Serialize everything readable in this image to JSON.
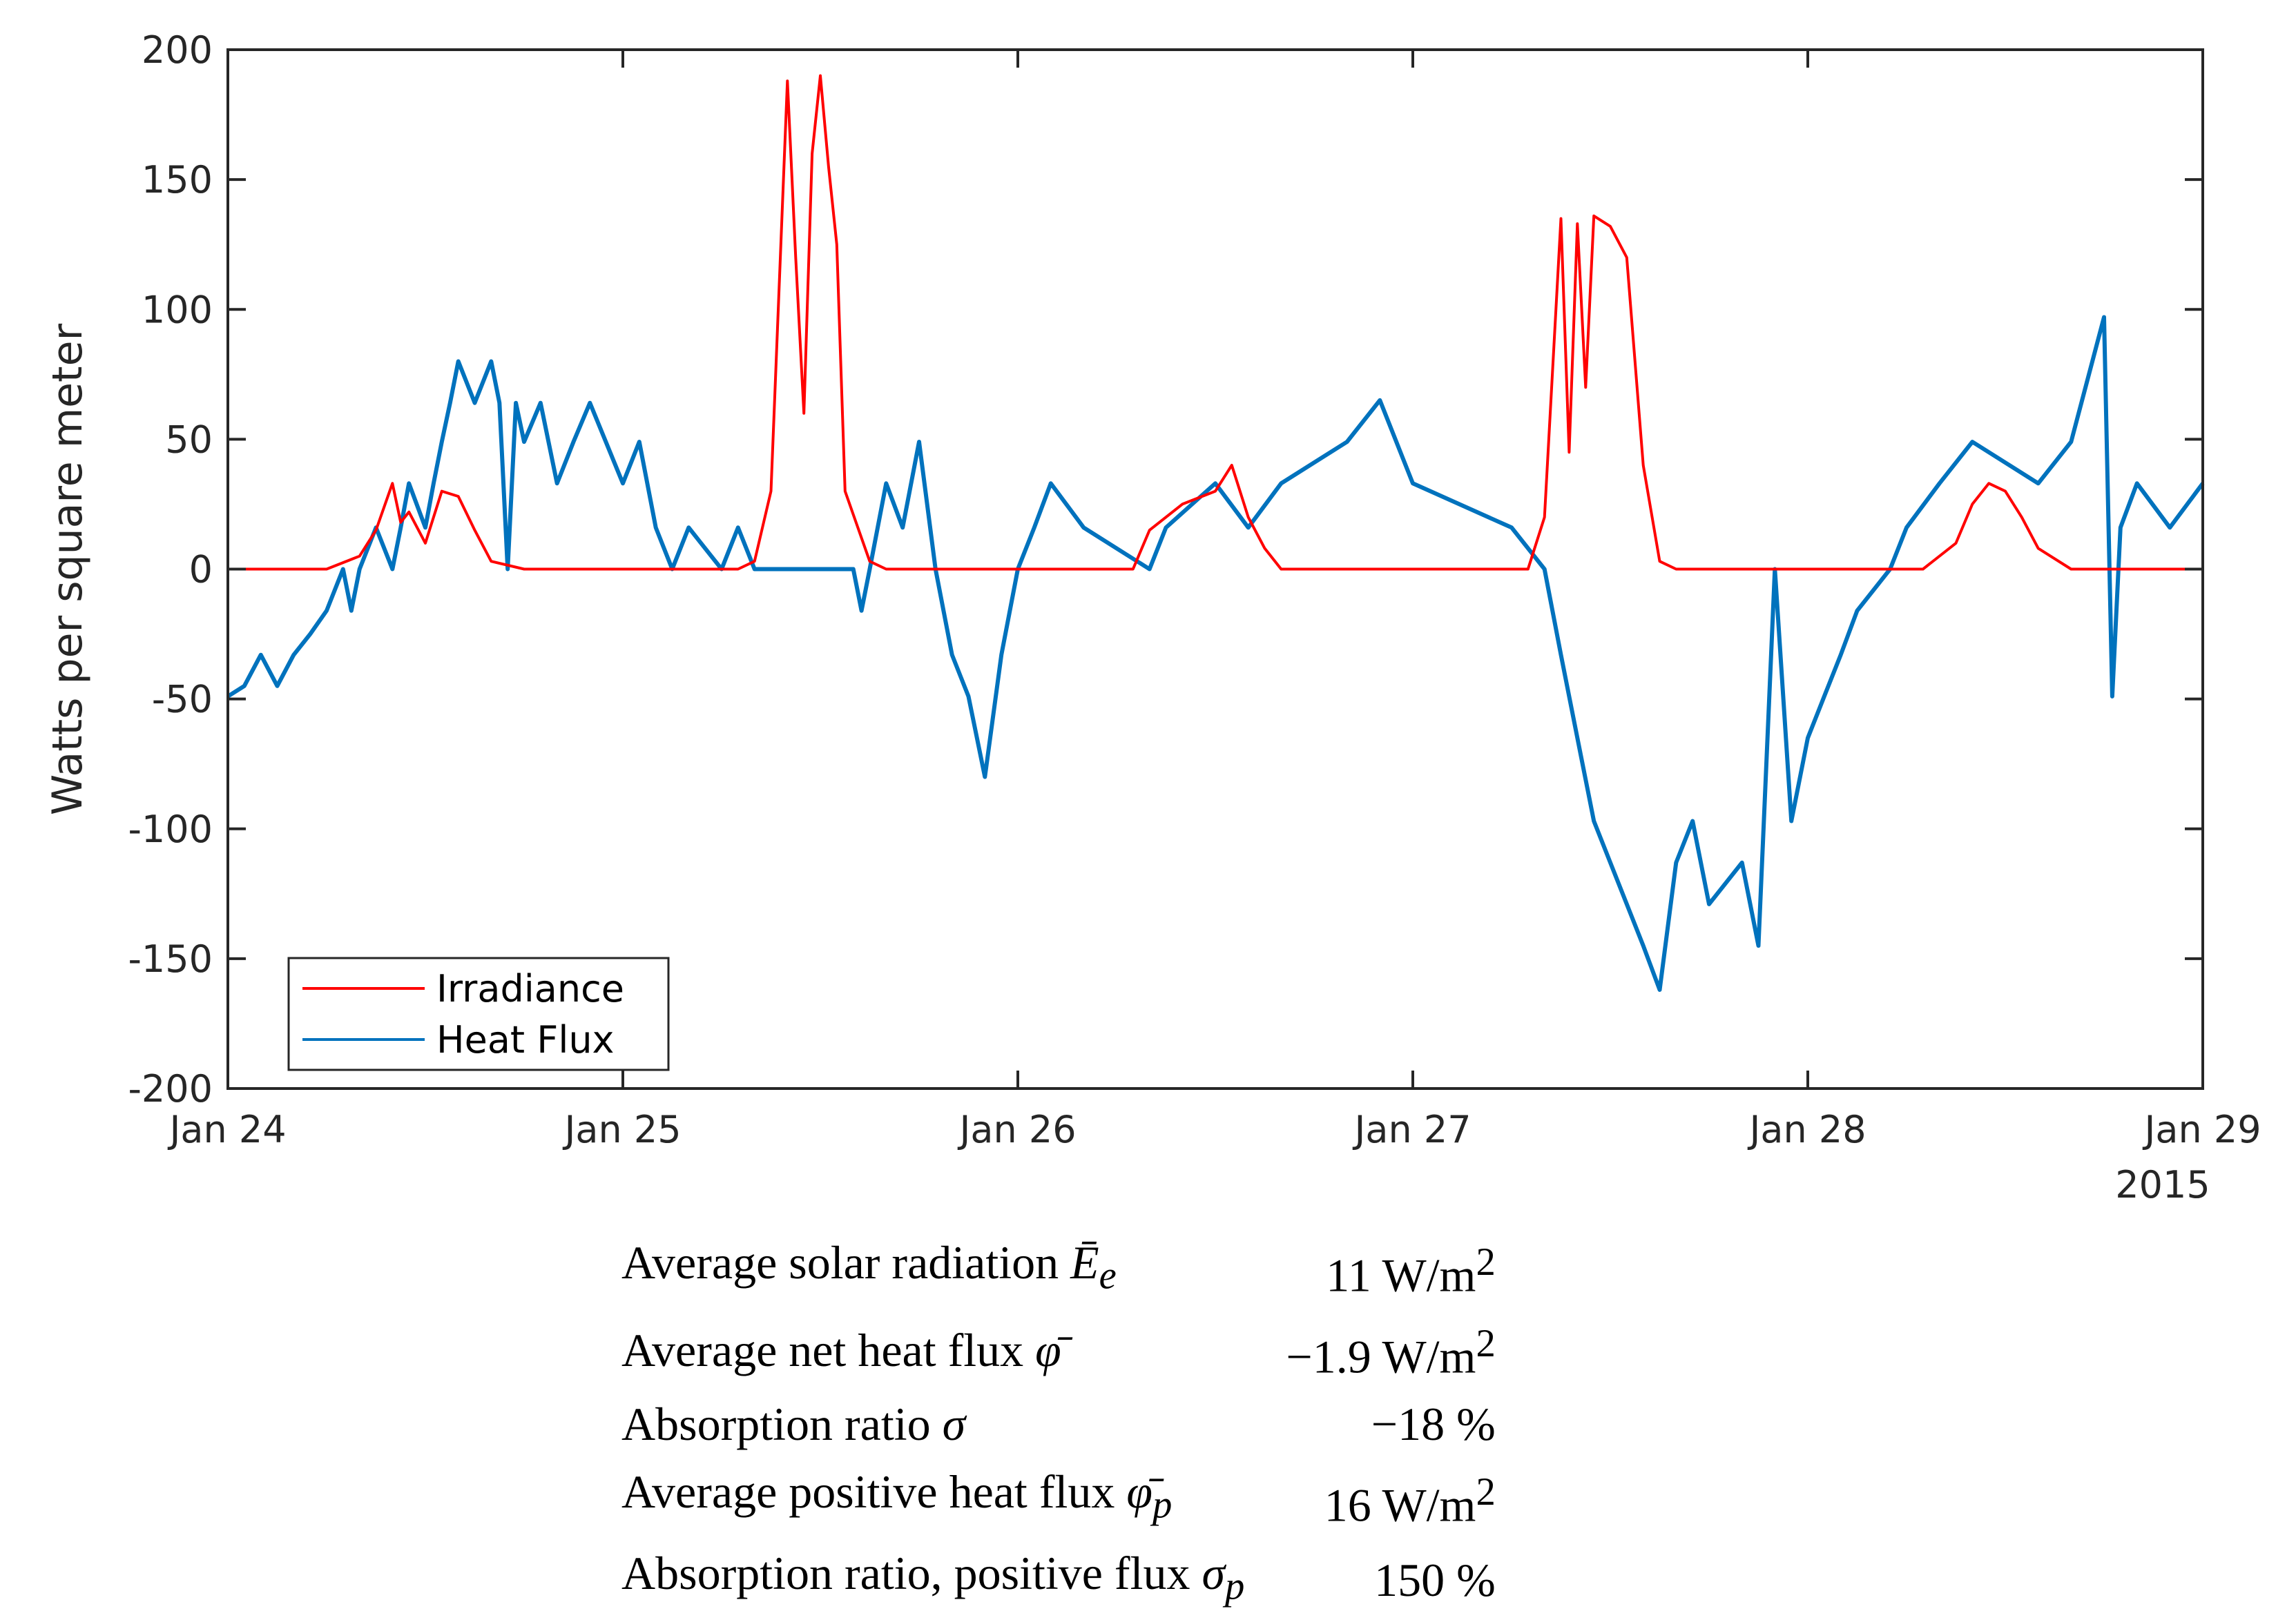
{
  "chart_data": {
    "type": "line",
    "xlabel": "",
    "ylabel": "Watts per square meter",
    "ylim": [
      -200,
      200
    ],
    "yticks": [
      "200",
      "150",
      "100",
      "50",
      "0",
      "-50",
      "-100",
      "-150",
      "-200"
    ],
    "yticks_values": [
      200,
      150,
      100,
      50,
      0,
      -50,
      -100,
      -150,
      -200
    ],
    "xlim": [
      "2015-01-24",
      "2015-01-29"
    ],
    "xticks": [
      "Jan 24",
      "Jan 25",
      "Jan 26",
      "Jan 27",
      "Jan 28",
      "Jan 29"
    ],
    "xticks_values": [
      "2015-01-24",
      "2015-01-25",
      "2015-01-26",
      "2015-01-27",
      "2015-01-28",
      "2015-01-29"
    ],
    "x_year_label": "2015",
    "legend_position": "bottom-left",
    "grid": false,
    "series": [
      {
        "name": "Irradiance",
        "color": "#ff0000",
        "points": [
          [
            "2015-01-24 00:00",
            0
          ],
          [
            "2015-01-24 06:00",
            0
          ],
          [
            "2015-01-24 08:00",
            5
          ],
          [
            "2015-01-24 09:00",
            15
          ],
          [
            "2015-01-24 10:00",
            33
          ],
          [
            "2015-01-24 10:30",
            18
          ],
          [
            "2015-01-24 11:00",
            22
          ],
          [
            "2015-01-24 12:00",
            10
          ],
          [
            "2015-01-24 13:00",
            30
          ],
          [
            "2015-01-24 14:00",
            28
          ],
          [
            "2015-01-24 15:00",
            15
          ],
          [
            "2015-01-24 16:00",
            3
          ],
          [
            "2015-01-24 18:00",
            0
          ],
          [
            "2015-01-25 07:00",
            0
          ],
          [
            "2015-01-25 08:00",
            3
          ],
          [
            "2015-01-25 09:00",
            30
          ],
          [
            "2015-01-25 10:00",
            188
          ],
          [
            "2015-01-25 10:30",
            120
          ],
          [
            "2015-01-25 11:00",
            60
          ],
          [
            "2015-01-25 11:30",
            160
          ],
          [
            "2015-01-25 12:00",
            190
          ],
          [
            "2015-01-25 12:30",
            155
          ],
          [
            "2015-01-25 13:00",
            125
          ],
          [
            "2015-01-25 13:30",
            30
          ],
          [
            "2015-01-25 15:00",
            3
          ],
          [
            "2015-01-25 16:00",
            0
          ],
          [
            "2015-01-26 07:00",
            0
          ],
          [
            "2015-01-26 08:00",
            15
          ],
          [
            "2015-01-26 10:00",
            25
          ],
          [
            "2015-01-26 12:00",
            30
          ],
          [
            "2015-01-26 13:00",
            40
          ],
          [
            "2015-01-26 14:00",
            20
          ],
          [
            "2015-01-26 15:00",
            8
          ],
          [
            "2015-01-26 16:00",
            0
          ],
          [
            "2015-01-27 07:00",
            0
          ],
          [
            "2015-01-27 08:00",
            20
          ],
          [
            "2015-01-27 09:00",
            135
          ],
          [
            "2015-01-27 09:30",
            45
          ],
          [
            "2015-01-27 10:00",
            133
          ],
          [
            "2015-01-27 10:30",
            70
          ],
          [
            "2015-01-27 11:00",
            136
          ],
          [
            "2015-01-27 12:00",
            132
          ],
          [
            "2015-01-27 13:00",
            120
          ],
          [
            "2015-01-27 14:00",
            40
          ],
          [
            "2015-01-27 15:00",
            3
          ],
          [
            "2015-01-27 16:00",
            0
          ],
          [
            "2015-01-28 07:00",
            0
          ],
          [
            "2015-01-28 09:00",
            10
          ],
          [
            "2015-01-28 10:00",
            25
          ],
          [
            "2015-01-28 11:00",
            33
          ],
          [
            "2015-01-28 12:00",
            30
          ],
          [
            "2015-01-28 13:00",
            20
          ],
          [
            "2015-01-28 14:00",
            8
          ],
          [
            "2015-01-28 16:00",
            0
          ],
          [
            "2015-01-29 00:00",
            0
          ]
        ]
      },
      {
        "name": "Heat Flux",
        "color": "#0072bd",
        "points": [
          [
            "2015-01-24 00:00",
            -49
          ],
          [
            "2015-01-24 01:00",
            -45
          ],
          [
            "2015-01-24 02:00",
            -33
          ],
          [
            "2015-01-24 03:00",
            -45
          ],
          [
            "2015-01-24 04:00",
            -33
          ],
          [
            "2015-01-24 05:00",
            -25
          ],
          [
            "2015-01-24 06:00",
            -16
          ],
          [
            "2015-01-24 07:00",
            0
          ],
          [
            "2015-01-24 07:30",
            -16
          ],
          [
            "2015-01-24 08:00",
            0
          ],
          [
            "2015-01-24 09:00",
            16
          ],
          [
            "2015-01-24 10:00",
            0
          ],
          [
            "2015-01-24 10:30",
            16
          ],
          [
            "2015-01-24 11:00",
            33
          ],
          [
            "2015-01-24 12:00",
            16
          ],
          [
            "2015-01-24 12:30",
            33
          ],
          [
            "2015-01-24 13:00",
            49
          ],
          [
            "2015-01-24 13:30",
            64
          ],
          [
            "2015-01-24 14:00",
            80
          ],
          [
            "2015-01-24 15:00",
            64
          ],
          [
            "2015-01-24 16:00",
            80
          ],
          [
            "2015-01-24 16:30",
            64
          ],
          [
            "2015-01-24 17:00",
            0
          ],
          [
            "2015-01-24 17:30",
            64
          ],
          [
            "2015-01-24 18:00",
            49
          ],
          [
            "2015-01-24 19:00",
            64
          ],
          [
            "2015-01-24 20:00",
            33
          ],
          [
            "2015-01-24 21:00",
            49
          ],
          [
            "2015-01-24 22:00",
            64
          ],
          [
            "2015-01-25 00:00",
            33
          ],
          [
            "2015-01-25 01:00",
            49
          ],
          [
            "2015-01-25 02:00",
            16
          ],
          [
            "2015-01-25 03:00",
            0
          ],
          [
            "2015-01-25 04:00",
            16
          ],
          [
            "2015-01-25 06:00",
            0
          ],
          [
            "2015-01-25 07:00",
            16
          ],
          [
            "2015-01-25 08:00",
            0
          ],
          [
            "2015-01-25 14:00",
            0
          ],
          [
            "2015-01-25 14:30",
            -16
          ],
          [
            "2015-01-25 15:00",
            0
          ],
          [
            "2015-01-25 16:00",
            33
          ],
          [
            "2015-01-25 17:00",
            16
          ],
          [
            "2015-01-25 18:00",
            49
          ],
          [
            "2015-01-25 19:00",
            0
          ],
          [
            "2015-01-25 20:00",
            -33
          ],
          [
            "2015-01-25 21:00",
            -49
          ],
          [
            "2015-01-25 22:00",
            -80
          ],
          [
            "2015-01-25 23:00",
            -33
          ],
          [
            "2015-01-26 00:00",
            0
          ],
          [
            "2015-01-26 01:00",
            16
          ],
          [
            "2015-01-26 02:00",
            33
          ],
          [
            "2015-01-26 04:00",
            16
          ],
          [
            "2015-01-26 08:00",
            0
          ],
          [
            "2015-01-26 09:00",
            16
          ],
          [
            "2015-01-26 12:00",
            33
          ],
          [
            "2015-01-26 14:00",
            16
          ],
          [
            "2015-01-26 16:00",
            33
          ],
          [
            "2015-01-26 20:00",
            49
          ],
          [
            "2015-01-26 22:00",
            65
          ],
          [
            "2015-01-27 00:00",
            33
          ],
          [
            "2015-01-27 06:00",
            16
          ],
          [
            "2015-01-27 08:00",
            0
          ],
          [
            "2015-01-27 09:00",
            -33
          ],
          [
            "2015-01-27 10:00",
            -65
          ],
          [
            "2015-01-27 11:00",
            -97
          ],
          [
            "2015-01-27 12:00",
            -113
          ],
          [
            "2015-01-27 14:00",
            -145
          ],
          [
            "2015-01-27 15:00",
            -162
          ],
          [
            "2015-01-27 16:00",
            -113
          ],
          [
            "2015-01-27 17:00",
            -97
          ],
          [
            "2015-01-27 18:00",
            -129
          ],
          [
            "2015-01-27 20:00",
            -113
          ],
          [
            "2015-01-27 21:00",
            -145
          ],
          [
            "2015-01-27 22:00",
            0
          ],
          [
            "2015-01-27 23:00",
            -97
          ],
          [
            "2015-01-28 00:00",
            -65
          ],
          [
            "2015-01-28 01:00",
            -49
          ],
          [
            "2015-01-28 02:00",
            -33
          ],
          [
            "2015-01-28 03:00",
            -16
          ],
          [
            "2015-01-28 05:00",
            0
          ],
          [
            "2015-01-28 06:00",
            16
          ],
          [
            "2015-01-28 08:00",
            33
          ],
          [
            "2015-01-28 10:00",
            49
          ],
          [
            "2015-01-28 14:00",
            33
          ],
          [
            "2015-01-28 16:00",
            49
          ],
          [
            "2015-01-28 18:00",
            97
          ],
          [
            "2015-01-28 18:30",
            -49
          ],
          [
            "2015-01-28 19:00",
            16
          ],
          [
            "2015-01-28 20:00",
            33
          ],
          [
            "2015-01-28 22:00",
            16
          ],
          [
            "2015-01-29 00:00",
            33
          ]
        ]
      }
    ]
  },
  "stats": {
    "rows": [
      {
        "label": "Average solar radiation ",
        "symbol": "Ē",
        "subscript": "e",
        "value": "11 W/m",
        "exponent": "2"
      },
      {
        "label": "Average net heat flux ",
        "symbol": "φ̄",
        "subscript": "",
        "value": "−1.9 W/m",
        "exponent": "2"
      },
      {
        "label": "Absorption ratio ",
        "symbol": "σ",
        "subscript": "",
        "value": "−18 %",
        "exponent": ""
      },
      {
        "label": "Average positive heat flux ",
        "symbol": "φ̄",
        "subscript": "p",
        "value": "16 W/m",
        "exponent": "2"
      },
      {
        "label": "Absorption ratio, positive flux ",
        "symbol": "σ",
        "subscript": "p",
        "value": "150 %",
        "exponent": ""
      }
    ]
  }
}
